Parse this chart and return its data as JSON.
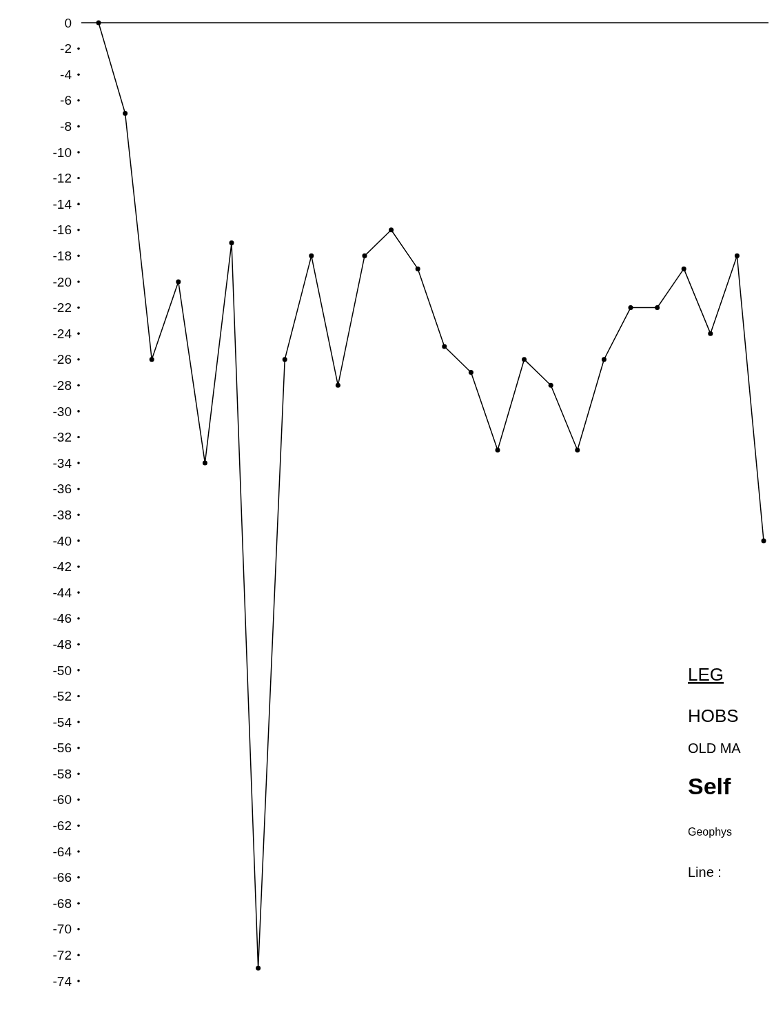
{
  "chart_data": {
    "type": "line",
    "categories": [
      null,
      null,
      null,
      null,
      null,
      null,
      null,
      null,
      null,
      null,
      null,
      null,
      null,
      null,
      null,
      null,
      null,
      null,
      null,
      null,
      null,
      null,
      null,
      null,
      null,
      null
    ],
    "values": [
      0,
      -7,
      -26,
      -20,
      -34,
      -17,
      -73,
      -26,
      -18,
      -28,
      -18,
      -16,
      -19,
      -25,
      -27,
      -33,
      -26,
      -28,
      -33,
      -26,
      -22,
      -22,
      -19,
      -24,
      -18,
      -40
    ],
    "color": "#000000",
    "marker": "circle",
    "line_style": "solid",
    "grid": false,
    "ylim": [
      -74,
      0
    ],
    "yticks": [
      0,
      -2,
      -4,
      -6,
      -8,
      -10,
      -12,
      -14,
      -16,
      -18,
      -20,
      -22,
      -24,
      -26,
      -28,
      -30,
      -32,
      -34,
      -36,
      -38,
      -40,
      -42,
      -44,
      -46,
      -48,
      -50,
      -52,
      -54,
      -56,
      -58,
      -60,
      -62,
      -64,
      -66,
      -68,
      -70,
      -72,
      -74
    ],
    "annotations": [
      "LEG",
      "HOBS",
      "OLD MA",
      "Self",
      "Geophys",
      "Line :"
    ]
  }
}
